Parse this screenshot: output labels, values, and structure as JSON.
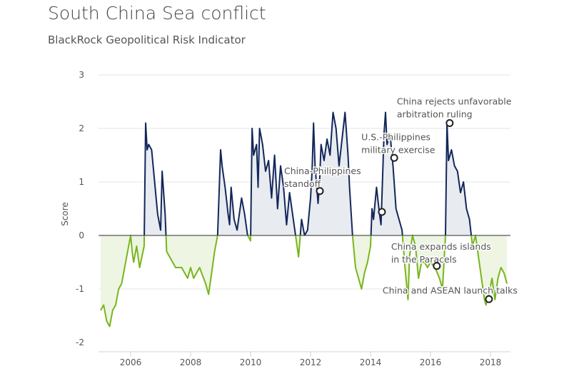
{
  "chart_data": {
    "type": "area",
    "title": "South China Sea conflict",
    "subtitle": "BlackRock Geopolitical Risk Indicator",
    "xlabel": "",
    "ylabel": "Score",
    "xlim": [
      2005.0,
      2018.6
    ],
    "ylim": [
      -2,
      3
    ],
    "xticks": [
      "2006",
      "2008",
      "2010",
      "2012",
      "2014",
      "2016",
      "2018"
    ],
    "yticks": [
      "3",
      "2",
      "1",
      "0",
      "-1",
      "-2"
    ],
    "grid": true,
    "colors": {
      "positive_line": "#13275a",
      "positive_fill": "#e8ebf0",
      "negative_line": "#78b51c",
      "negative_fill": "#eef5e2",
      "zero_line": "#555555"
    },
    "series": [
      {
        "x": [
          2005.0,
          2005.1,
          2005.2,
          2005.3,
          2005.4,
          2005.5,
          2005.6,
          2005.7,
          2005.8,
          2005.9,
          2006.0,
          2006.05,
          2006.1,
          2006.2,
          2006.3,
          2006.45,
          2006.5,
          2006.55,
          2006.6,
          2006.7,
          2006.8,
          2006.9,
          2007.0,
          2007.05,
          2007.15,
          2007.2,
          2007.3,
          2007.5,
          2007.7,
          2007.9,
          2008.0,
          2008.1,
          2008.3,
          2008.5,
          2008.6,
          2008.7,
          2008.8,
          2008.9,
          2009.0,
          2009.05,
          2009.15,
          2009.25,
          2009.3,
          2009.35,
          2009.45,
          2009.55,
          2009.7,
          2009.8,
          2009.9,
          2010.0,
          2010.05,
          2010.1,
          2010.2,
          2010.25,
          2010.3,
          2010.4,
          2010.5,
          2010.6,
          2010.7,
          2010.8,
          2010.9,
          2011.0,
          2011.1,
          2011.2,
          2011.3,
          2011.4,
          2011.5,
          2011.6,
          2011.7,
          2011.8,
          2011.9,
          2012.0,
          2012.05,
          2012.1,
          2012.15,
          2012.25,
          2012.3,
          2012.35,
          2012.45,
          2012.55,
          2012.65,
          2012.75,
          2012.85,
          2012.95,
          2013.05,
          2013.15,
          2013.25,
          2013.3,
          2013.4,
          2013.5,
          2013.6,
          2013.7,
          2013.8,
          2013.9,
          2014.0,
          2014.05,
          2014.1,
          2014.2,
          2014.3,
          2014.35,
          2014.45,
          2014.5,
          2014.55,
          2014.65,
          2014.75,
          2014.85,
          2014.95,
          2015.05,
          2015.15,
          2015.25,
          2015.3,
          2015.4,
          2015.5,
          2015.6,
          2015.7,
          2015.8,
          2015.9,
          2016.0,
          2016.15,
          2016.3,
          2016.4,
          2016.5,
          2016.55,
          2016.6,
          2016.7,
          2016.8,
          2016.9,
          2017.0,
          2017.1,
          2017.2,
          2017.3,
          2017.4,
          2017.5,
          2017.6,
          2017.7,
          2017.8,
          2017.85,
          2017.95,
          2018.05,
          2018.15,
          2018.25,
          2018.35,
          2018.45,
          2018.55
        ],
        "y": [
          -1.4,
          -1.3,
          -1.6,
          -1.7,
          -1.4,
          -1.3,
          -1.0,
          -0.9,
          -0.6,
          -0.3,
          0.0,
          -0.3,
          -0.5,
          -0.2,
          -0.6,
          -0.2,
          2.1,
          1.6,
          1.7,
          1.6,
          1.0,
          0.4,
          0.1,
          1.2,
          0.4,
          -0.3,
          -0.4,
          -0.6,
          -0.6,
          -0.8,
          -0.6,
          -0.8,
          -0.6,
          -0.9,
          -1.1,
          -0.7,
          -0.3,
          0.0,
          1.6,
          1.3,
          0.9,
          0.4,
          0.2,
          0.9,
          0.3,
          0.1,
          0.7,
          0.4,
          0.0,
          -0.1,
          2.0,
          1.5,
          1.7,
          0.9,
          2.0,
          1.7,
          1.2,
          1.4,
          0.7,
          1.5,
          0.5,
          1.3,
          0.9,
          0.2,
          0.8,
          0.4,
          0.0,
          -0.4,
          0.3,
          0.0,
          0.1,
          0.7,
          1.2,
          2.1,
          1.3,
          0.6,
          1.0,
          1.7,
          1.4,
          1.8,
          1.5,
          2.3,
          2.0,
          1.3,
          1.8,
          2.3,
          1.5,
          0.9,
          0.0,
          -0.6,
          -0.8,
          -1.0,
          -0.7,
          -0.5,
          -0.2,
          0.5,
          0.3,
          0.9,
          0.4,
          0.2,
          1.9,
          2.3,
          1.7,
          1.9,
          1.3,
          0.5,
          0.3,
          0.1,
          -0.6,
          -1.2,
          -0.4,
          0.0,
          -0.2,
          -0.8,
          -0.5,
          -0.5,
          -0.6,
          -0.5,
          -0.6,
          -0.8,
          -1.0,
          0.0,
          2.1,
          1.4,
          1.6,
          1.3,
          1.2,
          0.8,
          1.0,
          0.5,
          0.3,
          -0.2,
          0.0,
          -0.4,
          -0.8,
          -1.2,
          -1.3,
          -1.1,
          -0.8,
          -1.2,
          -0.8,
          -0.6,
          -0.7,
          -0.9
        ]
      }
    ],
    "annotations": [
      {
        "x": 2012.31,
        "y": 0.83,
        "lines": [
          "China-Philippines",
          "standoff"
        ]
      },
      {
        "x": 2014.38,
        "y": 0.44,
        "lines": []
      },
      {
        "x": 2014.79,
        "y": 1.45,
        "lines": [
          "U.S.-Philippines",
          "military exercise"
        ]
      },
      {
        "x": 2016.64,
        "y": 2.1,
        "lines": [
          "China rejects unfavorable",
          "arbitration ruling"
        ]
      },
      {
        "x": 2016.21,
        "y": -0.57,
        "lines": [
          "China expands islands",
          "in the Paracels"
        ]
      },
      {
        "x": 2017.95,
        "y": -1.19,
        "lines": [
          "China and ASEAN launch talks"
        ]
      }
    ]
  }
}
